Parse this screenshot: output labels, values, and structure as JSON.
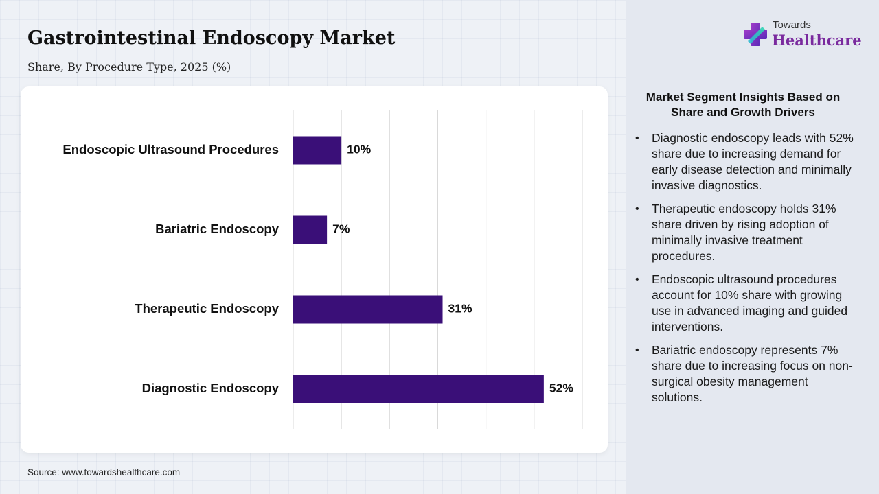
{
  "header": {
    "title": "Gastrointestinal Endoscopy Market",
    "subtitle": "Share, By Procedure Type, 2025 (%)"
  },
  "logo": {
    "line1": "Towards",
    "line2": "Healthcare"
  },
  "chart_data": {
    "type": "bar",
    "orientation": "horizontal",
    "categories": [
      "Endoscopic Ultrasound Procedures",
      "Bariatric Endoscopy",
      "Therapeutic Endoscopy",
      "Diagnostic Endoscopy"
    ],
    "values": [
      10,
      7,
      31,
      52
    ],
    "value_labels": [
      "10%",
      "7%",
      "31%",
      "52%"
    ],
    "xlim": [
      0,
      60
    ],
    "grid": true,
    "bar_color": "#3a0f78"
  },
  "insights": {
    "title": "Market Segment Insights Based on Share and Growth Drivers",
    "bullet": "•",
    "items": [
      "Diagnostic endoscopy leads with 52% share due to increasing demand for early disease detection and minimally invasive diagnostics.",
      "Therapeutic endoscopy holds 31% share driven by rising adoption of minimally invasive treatment procedures.",
      "Endoscopic ultrasound procedures account for 10% share with growing use in advanced imaging and guided interventions.",
      "Bariatric endoscopy represents 7% share due to increasing focus on non-surgical obesity management solutions."
    ]
  },
  "footer": {
    "source": "Source: www.towardshealthcare.com"
  }
}
